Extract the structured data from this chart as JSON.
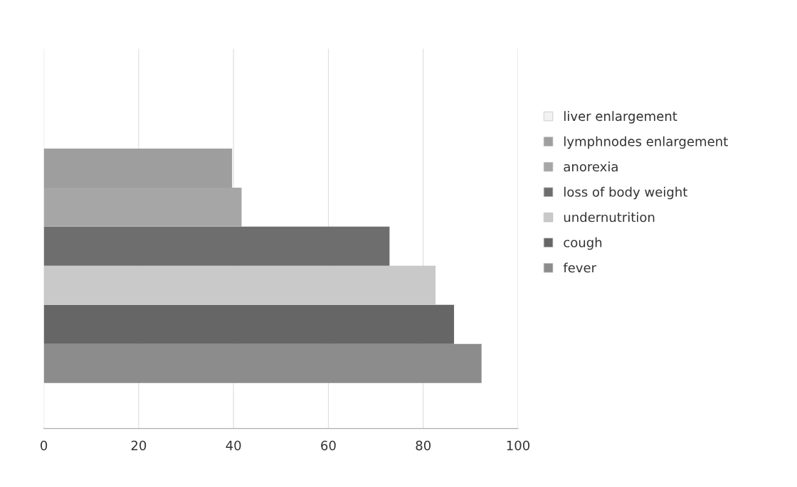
{
  "chart_data": {
    "type": "bar",
    "orientation": "horizontal",
    "categories": [
      null
    ],
    "series": [
      {
        "name": "fever",
        "color": "#8c8c8c",
        "values": [
          92.3
        ]
      },
      {
        "name": "cough",
        "color": "#666666",
        "values": [
          86.5
        ]
      },
      {
        "name": "undernutrition",
        "color": "#c9c9c9",
        "values": [
          82.6
        ]
      },
      {
        "name": "loss of body weight",
        "color": "#6e6e6e",
        "values": [
          72.9
        ]
      },
      {
        "name": "anorexia",
        "color": "#a6a6a6",
        "values": [
          41.7
        ]
      },
      {
        "name": "lymphnodes enlargement",
        "color": "#9e9e9e",
        "values": [
          39.7
        ]
      },
      {
        "name": "liver enlargement",
        "color": "#f2f2f2",
        "values": [
          null
        ]
      }
    ],
    "xlim": [
      0,
      100
    ],
    "xticks": [
      0,
      20,
      40,
      60,
      80,
      100
    ],
    "grid": "x",
    "legend": "right"
  }
}
